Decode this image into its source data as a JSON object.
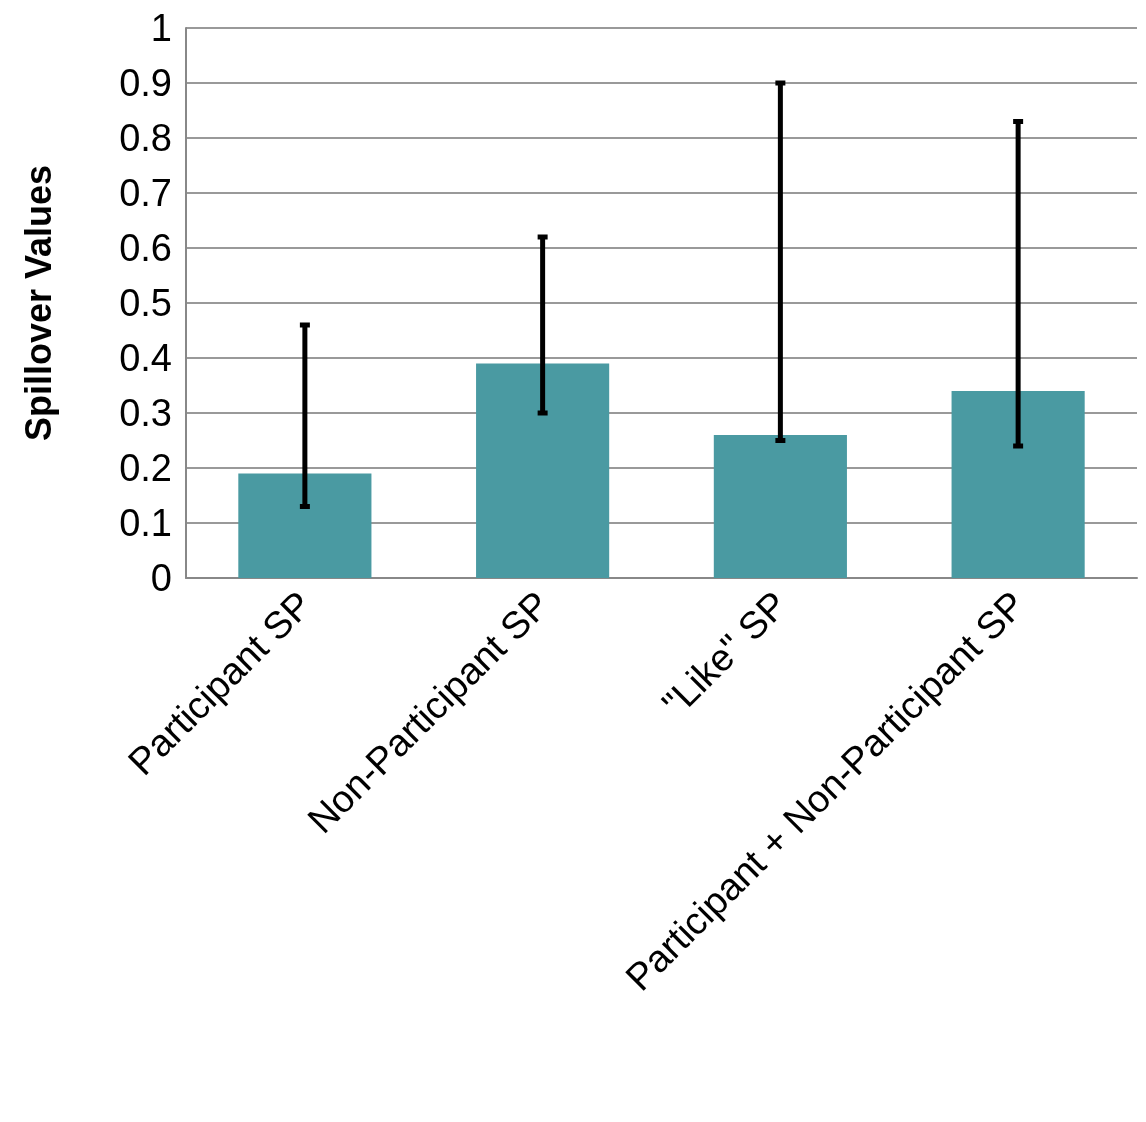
{
  "chart_data": {
    "type": "bar",
    "ylabel": "Spillover Values",
    "categories": [
      "Participant SP",
      "Non-Participant SP",
      "\"Like\" SP",
      "Participant + Non-Participant SP"
    ],
    "values": [
      0.19,
      0.39,
      0.26,
      0.34
    ],
    "errors": [
      [
        0.13,
        0.46
      ],
      [
        0.3,
        0.62
      ],
      [
        0.25,
        0.9
      ],
      [
        0.24,
        0.83
      ]
    ],
    "color": "#4a9aa2",
    "ylim": [
      0,
      1
    ],
    "yticks": [
      0,
      0.1,
      0.2,
      0.3,
      0.4,
      0.5,
      0.6,
      0.7,
      0.8,
      0.9,
      1
    ],
    "grid": "y"
  }
}
